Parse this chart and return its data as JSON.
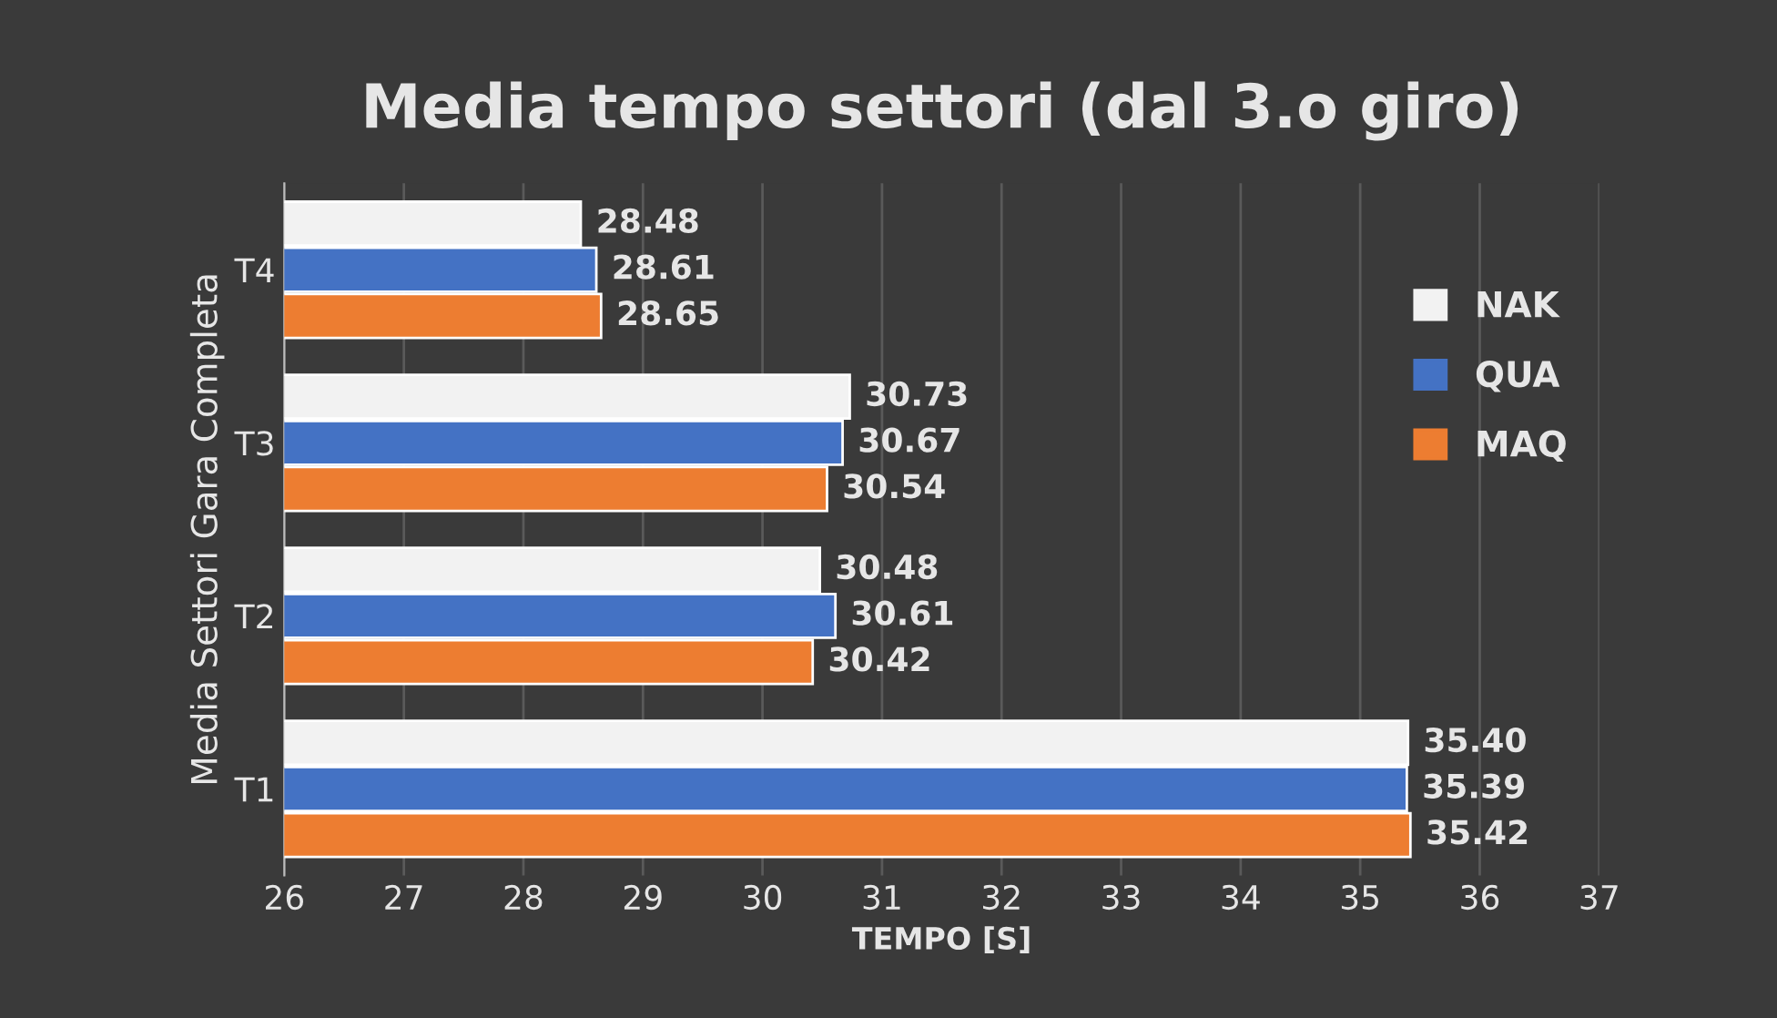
{
  "chart_data": {
    "type": "bar",
    "orientation": "horizontal",
    "title": "Media tempo settori (dal 3.o giro)",
    "xlabel": "TEMPO [S]",
    "ylabel": "Media Settori Gara Completa",
    "categories": [
      "T4",
      "T3",
      "T2",
      "T1"
    ],
    "series": [
      {
        "name": "NAK",
        "color": "#f2f2f2",
        "values": [
          28.48,
          30.73,
          30.48,
          35.4
        ],
        "value_labels": [
          "28.48",
          "30.73",
          "30.48",
          "35.40"
        ]
      },
      {
        "name": "QUA",
        "color": "#4472c4",
        "values": [
          28.61,
          30.67,
          30.61,
          35.39
        ],
        "value_labels": [
          "28.61",
          "30.67",
          "30.61",
          "35.39"
        ]
      },
      {
        "name": "MAQ",
        "color": "#ed7d31",
        "values": [
          28.65,
          30.54,
          30.42,
          35.42
        ],
        "value_labels": [
          "28.65",
          "30.54",
          "30.42",
          "35.42"
        ]
      }
    ],
    "xlim": [
      26,
      37
    ],
    "xticks": [
      26,
      27,
      28,
      29,
      30,
      31,
      32,
      33,
      34,
      35,
      36,
      37
    ],
    "grid": "x",
    "legend": "right"
  }
}
